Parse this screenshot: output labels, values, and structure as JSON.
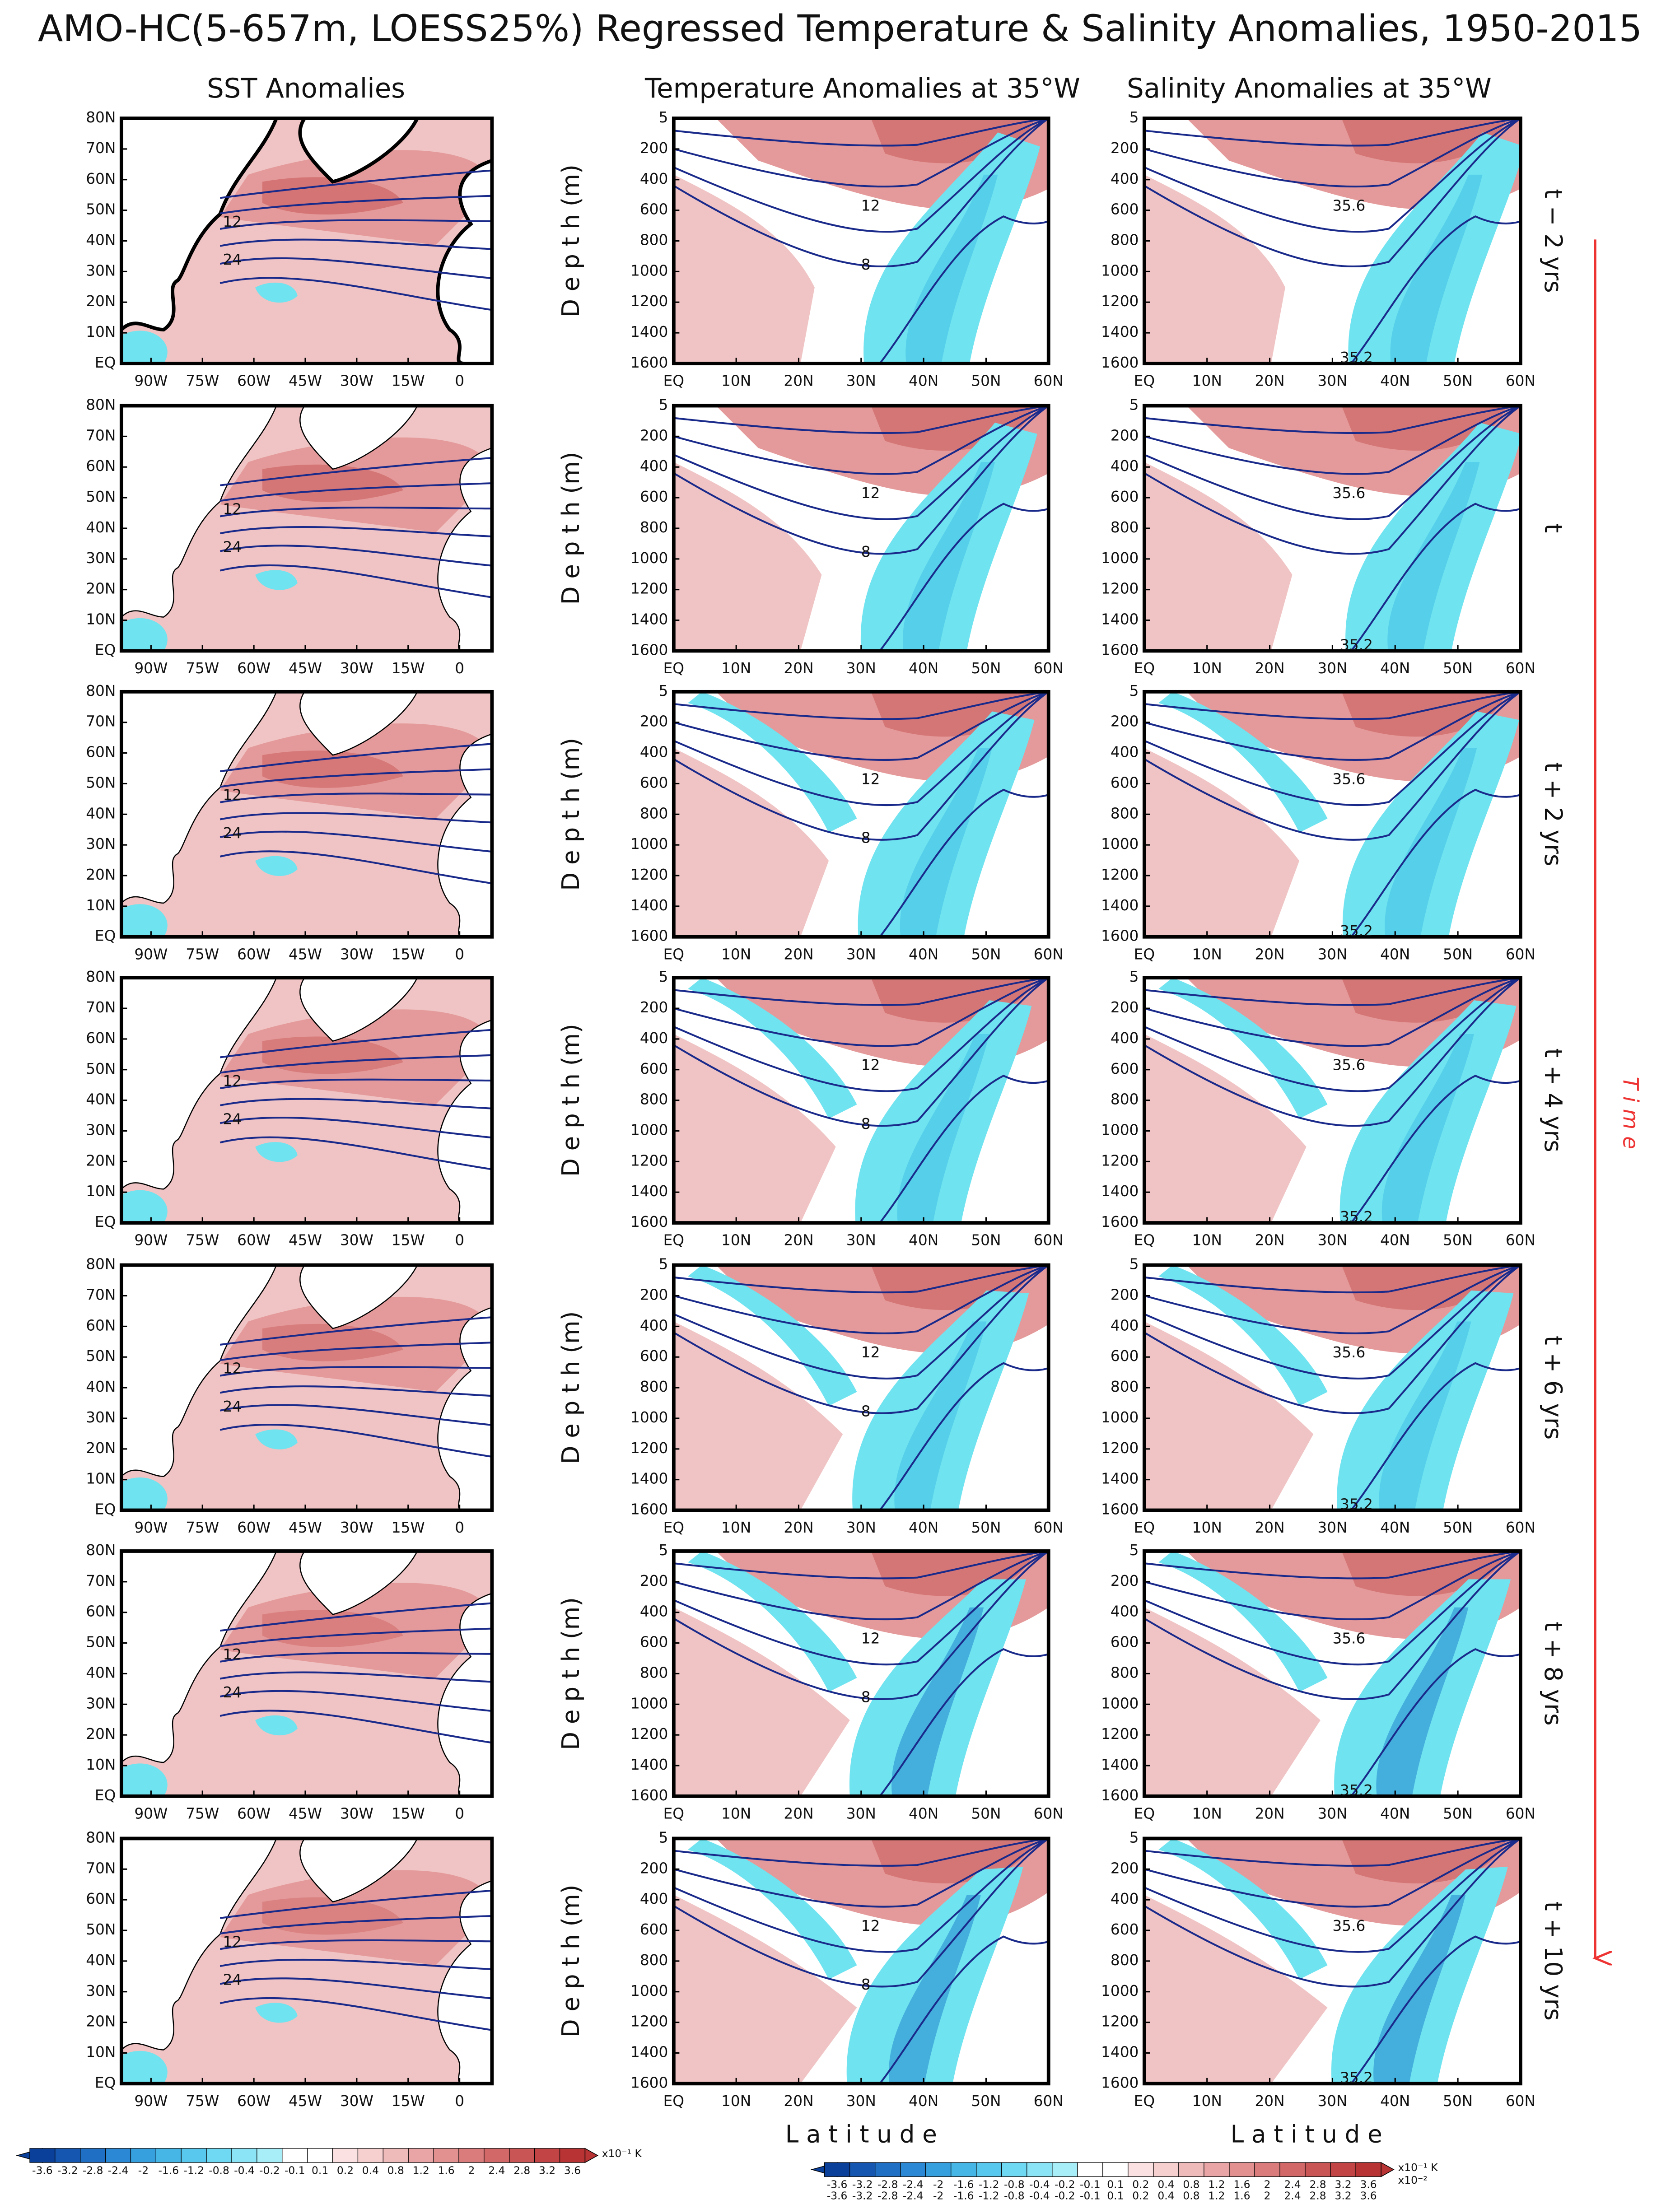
{
  "title": "AMO-HC(5-657m, LOESS25%) Regressed Temperature & Salinity Anomalies, 1950-2015",
  "columns": [
    "SST Anomalies",
    "Temperature Anomalies at 35°W",
    "Salinity Anomalies at 35°W"
  ],
  "rows": [
    "t − 2 yrs",
    "t",
    "t + 2 yrs",
    "t + 4 yrs",
    "t + 6 yrs",
    "t + 8 yrs",
    "t + 10 yrs"
  ],
  "map_axes": {
    "lat_ticks": [
      "EQ",
      "10N",
      "20N",
      "30N",
      "40N",
      "50N",
      "60N",
      "70N",
      "80N"
    ],
    "lon_ticks": [
      "90W",
      "75W",
      "60W",
      "45W",
      "30W",
      "15W",
      "0"
    ]
  },
  "section_axes": {
    "depth_label": "D e p t h (m)",
    "depth_ticks": [
      "5",
      "200",
      "400",
      "600",
      "800",
      "1000",
      "1200",
      "1400",
      "1600"
    ],
    "lat_ticks": [
      "EQ",
      "10N",
      "20N",
      "30N",
      "40N",
      "50N",
      "60N"
    ],
    "x_label": "L a t i t u d e"
  },
  "contour_labels": {
    "temperature": [
      "12",
      "8"
    ],
    "salinity": [
      "35.6",
      "35.2"
    ],
    "sst": [
      "12",
      "24"
    ]
  },
  "time_label": "T i m e",
  "colorbars": {
    "ticks": [
      "-3.6",
      "-3.2",
      "-2.8",
      "-2.4",
      "-2",
      "-1.6",
      "-1.2",
      "-0.8",
      "-0.4",
      "-0.2",
      "-0.1",
      "0.1",
      "0.2",
      "0.4",
      "0.8",
      "1.2",
      "1.6",
      "2",
      "2.4",
      "2.8",
      "3.2",
      "3.6"
    ],
    "sst_unit": "x10⁻¹ K",
    "section_units": [
      "x10⁻¹ K",
      "x10⁻²"
    ]
  }
}
